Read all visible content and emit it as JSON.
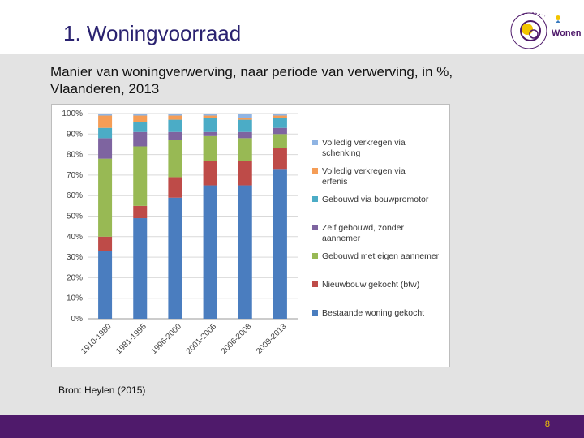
{
  "header": {
    "title": "1. Woningvoorraad",
    "logo_text": "Wonen"
  },
  "subtitle": "Manier van woningverwerving, naar periode van verwerving, in %, Vlaanderen, 2013",
  "source": "Bron: Heylen (2015)",
  "footer": {
    "page_number": "8",
    "bar_color": "#4f1a6b"
  },
  "chart_data": {
    "type": "bar",
    "stacked": true,
    "categories": [
      "1910-1980",
      "1981-1995",
      "1996-2000",
      "2001-2005",
      "2006-2008",
      "2009-2013"
    ],
    "ylim": [
      0,
      100
    ],
    "yticks": [
      "0%",
      "10%",
      "20%",
      "30%",
      "40%",
      "50%",
      "60%",
      "70%",
      "80%",
      "90%",
      "100%"
    ],
    "ytick_values": [
      0,
      10,
      20,
      30,
      40,
      50,
      60,
      70,
      80,
      90,
      100
    ],
    "grid": true,
    "legend_position": "right",
    "series": [
      {
        "name": "Bestaande woning gekocht",
        "color": "#4a7dbf",
        "values": [
          33,
          49,
          59,
          65,
          65,
          73
        ]
      },
      {
        "name": "Nieuwbouw gekocht (btw)",
        "color": "#be4b48",
        "values": [
          7,
          6,
          10,
          12,
          12,
          10
        ]
      },
      {
        "name": "Gebouwd met eigen aannemer",
        "color": "#98b954",
        "values": [
          38,
          29,
          18,
          12,
          11,
          7
        ]
      },
      {
        "name": "Zelf gebouwd, zonder aannemer",
        "color": "#7e64a0",
        "values": [
          10,
          7,
          4,
          2,
          3,
          3
        ]
      },
      {
        "name": "Gebouwd via bouwpromotor",
        "color": "#4bacc6",
        "values": [
          5,
          5,
          6,
          7,
          6,
          5
        ]
      },
      {
        "name": "Volledig verkregen via erfenis",
        "color": "#f59d56",
        "values": [
          6,
          3,
          2,
          1,
          1,
          1
        ]
      },
      {
        "name": "Volledig verkregen via schenking",
        "color": "#8fb4e3",
        "values": [
          1,
          1,
          1,
          1,
          2,
          1
        ]
      }
    ]
  }
}
